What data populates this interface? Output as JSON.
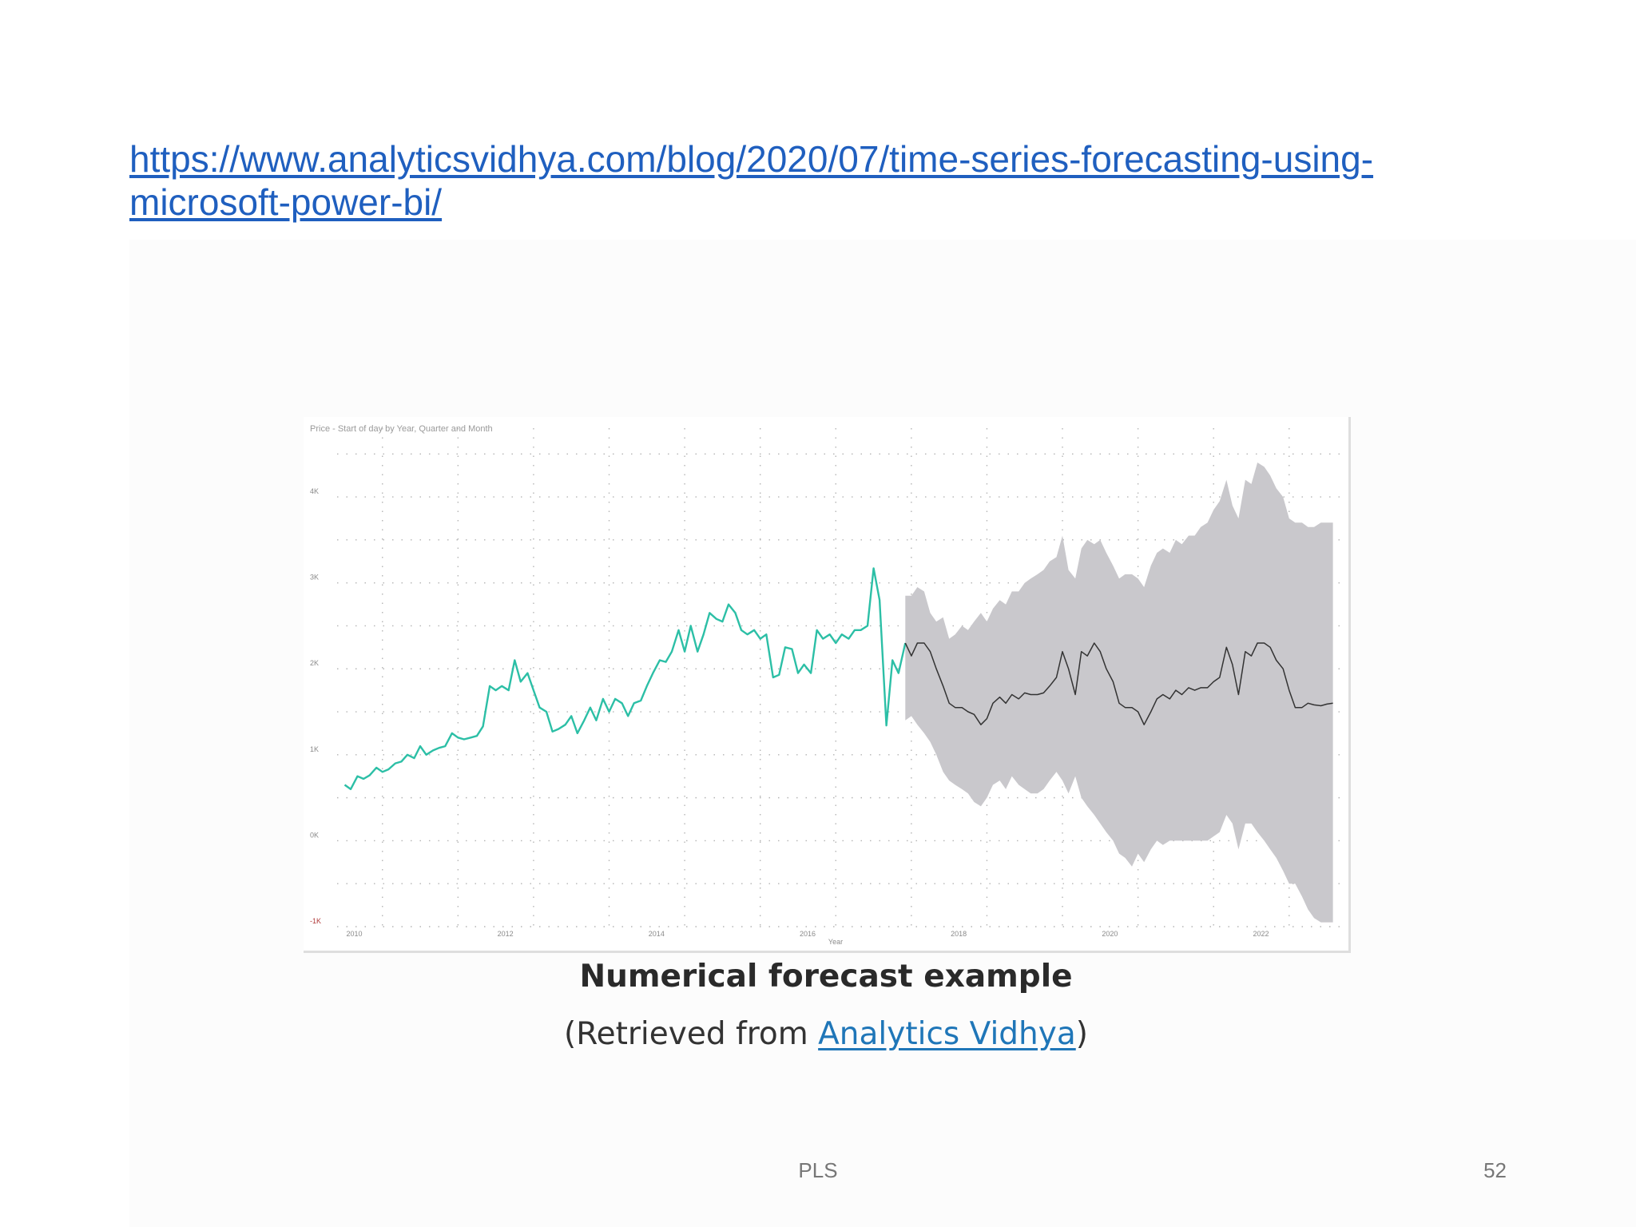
{
  "slide": {
    "link_text": "https://www.analyticsvidhya.com/blog/2020/07/time-series-forecasting-using-microsoft-power-bi/",
    "caption_title": "Numerical forecast example",
    "caption_prefix": "(Retrieved from ",
    "caption_link": "Analytics Vidhya",
    "caption_suffix": ")",
    "footer_center": "PLS",
    "page_number": "52"
  },
  "colors": {
    "link": "#1f5fbf",
    "history_line": "#2cbfa6",
    "forecast_line": "#333333",
    "confidence_band": "#c9c8cc"
  },
  "chart_data": {
    "type": "line",
    "title": "Price - Start of day by Year, Quarter and Month",
    "xlabel": "Year",
    "ylabel": "",
    "xlim": [
      2009.9,
      2023.2
    ],
    "ylim": [
      -1000,
      4800
    ],
    "x_ticks": [
      2010,
      2012,
      2014,
      2016,
      2018,
      2020,
      2022
    ],
    "y_ticks": [
      {
        "value": -1000,
        "label": "-1K"
      },
      {
        "value": 0,
        "label": "0K"
      },
      {
        "value": 1000,
        "label": "1K"
      },
      {
        "value": 2000,
        "label": "2K"
      },
      {
        "value": 3000,
        "label": "3K"
      },
      {
        "value": 4000,
        "label": "4K"
      }
    ],
    "grid": true,
    "series": [
      {
        "name": "",
        "role": "history",
        "x": [
          2010.0,
          2010.08,
          2010.17,
          2010.25,
          2010.33,
          2010.42,
          2010.5,
          2010.58,
          2010.67,
          2010.75,
          2010.83,
          2010.92,
          2011.0,
          2011.08,
          2011.17,
          2011.25,
          2011.33,
          2011.42,
          2011.5,
          2011.58,
          2011.67,
          2011.75,
          2011.83,
          2011.92,
          2012.0,
          2012.08,
          2012.17,
          2012.25,
          2012.33,
          2012.42,
          2012.5,
          2012.58,
          2012.67,
          2012.75,
          2012.83,
          2012.92,
          2013.0,
          2013.08,
          2013.17,
          2013.25,
          2013.33,
          2013.42,
          2013.5,
          2013.58,
          2013.67,
          2013.75,
          2013.83,
          2013.92,
          2014.0,
          2014.08,
          2014.17,
          2014.25,
          2014.33,
          2014.42,
          2014.5,
          2014.58,
          2014.67,
          2014.75,
          2014.83,
          2014.92,
          2015.0,
          2015.08,
          2015.17,
          2015.25,
          2015.33,
          2015.42,
          2015.5,
          2015.58,
          2015.67,
          2015.75,
          2015.83,
          2015.92,
          2016.0,
          2016.08,
          2016.17,
          2016.25,
          2016.33,
          2016.42,
          2016.5,
          2016.58,
          2016.67,
          2016.75,
          2016.83,
          2016.92,
          2017.0,
          2017.08,
          2017.17,
          2017.25,
          2017.33,
          2017.42
        ],
        "values": [
          650,
          600,
          750,
          720,
          760,
          850,
          800,
          830,
          900,
          920,
          1000,
          960,
          1100,
          1000,
          1050,
          1080,
          1100,
          1250,
          1200,
          1180,
          1200,
          1220,
          1330,
          1800,
          1750,
          1800,
          1750,
          2100,
          1850,
          1950,
          1750,
          1550,
          1500,
          1270,
          1300,
          1350,
          1450,
          1250,
          1400,
          1550,
          1400,
          1650,
          1500,
          1650,
          1600,
          1450,
          1600,
          1630,
          1800,
          1950,
          2100,
          2080,
          2200,
          2450,
          2200,
          2500,
          2200,
          2400,
          2650,
          2580,
          2550,
          2750,
          2650,
          2450,
          2400,
          2450,
          2350,
          2400,
          1900,
          1930,
          2250,
          2230,
          1950,
          2050,
          1950,
          2450,
          2350,
          2400,
          2300,
          2400,
          2350,
          2450,
          2450,
          2500,
          3170,
          2800,
          1340,
          2100,
          1950,
          2300
        ]
      },
      {
        "name": "",
        "role": "forecast",
        "x": [
          2017.42,
          2017.5,
          2017.58,
          2017.67,
          2017.75,
          2017.83,
          2017.92,
          2018.0,
          2018.08,
          2018.17,
          2018.25,
          2018.33,
          2018.42,
          2018.5,
          2018.58,
          2018.67,
          2018.75,
          2018.83,
          2018.92,
          2019.0,
          2019.08,
          2019.17,
          2019.25,
          2019.33,
          2019.42,
          2019.5,
          2019.58,
          2019.67,
          2019.75,
          2019.83,
          2019.92,
          2020.0,
          2020.08,
          2020.17,
          2020.25,
          2020.33,
          2020.42,
          2020.5,
          2020.58,
          2020.67,
          2020.75,
          2020.83,
          2020.92,
          2021.0,
          2021.08,
          2021.17,
          2021.25,
          2021.33,
          2021.42,
          2021.5,
          2021.58,
          2021.67,
          2021.75,
          2021.83,
          2021.92,
          2022.0,
          2022.08,
          2022.17,
          2022.25,
          2022.33,
          2022.42,
          2022.5,
          2022.58,
          2022.67,
          2022.75,
          2022.83,
          2022.92,
          2023.0,
          2023.08
        ],
        "values": [
          2300,
          2150,
          2300,
          2300,
          2200,
          2000,
          1800,
          1600,
          1550,
          1550,
          1500,
          1470,
          1350,
          1420,
          1600,
          1670,
          1600,
          1700,
          1650,
          1720,
          1700,
          1700,
          1720,
          1800,
          1900,
          2200,
          2000,
          1700,
          2200,
          2150,
          2300,
          2200,
          2000,
          1850,
          1600,
          1550,
          1550,
          1500,
          1350,
          1500,
          1650,
          1700,
          1650,
          1750,
          1700,
          1780,
          1750,
          1780,
          1780,
          1850,
          1900,
          2250,
          2050,
          1700,
          2200,
          2150,
          2300,
          2300,
          2250,
          2100,
          2000,
          1750,
          1550,
          1550,
          1600,
          1580,
          1570,
          1590,
          1600
        ]
      },
      {
        "name": "",
        "role": "confidence_upper",
        "x": [
          2017.42,
          2017.5,
          2017.58,
          2017.67,
          2017.75,
          2017.83,
          2017.92,
          2018.0,
          2018.08,
          2018.17,
          2018.25,
          2018.33,
          2018.42,
          2018.5,
          2018.58,
          2018.67,
          2018.75,
          2018.83,
          2018.92,
          2019.0,
          2019.08,
          2019.17,
          2019.25,
          2019.33,
          2019.42,
          2019.5,
          2019.58,
          2019.67,
          2019.75,
          2019.83,
          2019.92,
          2020.0,
          2020.08,
          2020.17,
          2020.25,
          2020.33,
          2020.42,
          2020.5,
          2020.58,
          2020.67,
          2020.75,
          2020.83,
          2020.92,
          2021.0,
          2021.08,
          2021.17,
          2021.25,
          2021.33,
          2021.42,
          2021.5,
          2021.58,
          2021.67,
          2021.75,
          2021.83,
          2021.92,
          2022.0,
          2022.08,
          2022.17,
          2022.25,
          2022.33,
          2022.42,
          2022.5,
          2022.58,
          2022.67,
          2022.75,
          2022.83,
          2022.92,
          2023.0,
          2023.08
        ],
        "values": [
          2850,
          2850,
          2950,
          2900,
          2650,
          2550,
          2600,
          2350,
          2400,
          2500,
          2450,
          2550,
          2650,
          2550,
          2700,
          2800,
          2750,
          2900,
          2900,
          3000,
          3050,
          3100,
          3150,
          3250,
          3300,
          3550,
          3150,
          3050,
          3400,
          3500,
          3450,
          3500,
          3350,
          3200,
          3050,
          3100,
          3100,
          3050,
          2950,
          3200,
          3350,
          3400,
          3350,
          3500,
          3450,
          3550,
          3550,
          3650,
          3700,
          3850,
          3950,
          4200,
          3900,
          3750,
          4200,
          4150,
          4400,
          4350,
          4250,
          4100,
          4000,
          3750,
          3700,
          3700,
          3650,
          3650,
          3700,
          3700,
          3700
        ]
      },
      {
        "name": "",
        "role": "confidence_lower",
        "x": [
          2017.42,
          2017.5,
          2017.58,
          2017.67,
          2017.75,
          2017.83,
          2017.92,
          2018.0,
          2018.08,
          2018.17,
          2018.25,
          2018.33,
          2018.42,
          2018.5,
          2018.58,
          2018.67,
          2018.75,
          2018.83,
          2018.92,
          2019.0,
          2019.08,
          2019.17,
          2019.25,
          2019.33,
          2019.42,
          2019.5,
          2019.58,
          2019.67,
          2019.75,
          2019.83,
          2019.92,
          2020.0,
          2020.08,
          2020.17,
          2020.25,
          2020.33,
          2020.42,
          2020.5,
          2020.58,
          2020.67,
          2020.75,
          2020.83,
          2020.92,
          2021.0,
          2021.08,
          2021.17,
          2021.25,
          2021.33,
          2021.42,
          2021.5,
          2021.58,
          2021.67,
          2021.75,
          2021.83,
          2021.92,
          2022.0,
          2022.08,
          2022.17,
          2022.25,
          2022.33,
          2022.42,
          2022.5,
          2022.58,
          2022.67,
          2022.75,
          2022.83,
          2022.92,
          2023.0,
          2023.08
        ],
        "values": [
          1400,
          1450,
          1350,
          1250,
          1150,
          1000,
          800,
          700,
          650,
          600,
          550,
          450,
          400,
          500,
          650,
          700,
          600,
          750,
          650,
          600,
          550,
          550,
          600,
          700,
          800,
          700,
          550,
          750,
          500,
          400,
          300,
          200,
          100,
          0,
          -150,
          -200,
          -300,
          -150,
          -250,
          -100,
          0,
          -50,
          0,
          0,
          0,
          0,
          0,
          0,
          0,
          50,
          100,
          300,
          200,
          -100,
          200,
          200,
          100,
          0,
          -100,
          -200,
          -350,
          -500,
          -500,
          -650,
          -800,
          -900,
          -950,
          -950,
          -950
        ]
      }
    ]
  }
}
